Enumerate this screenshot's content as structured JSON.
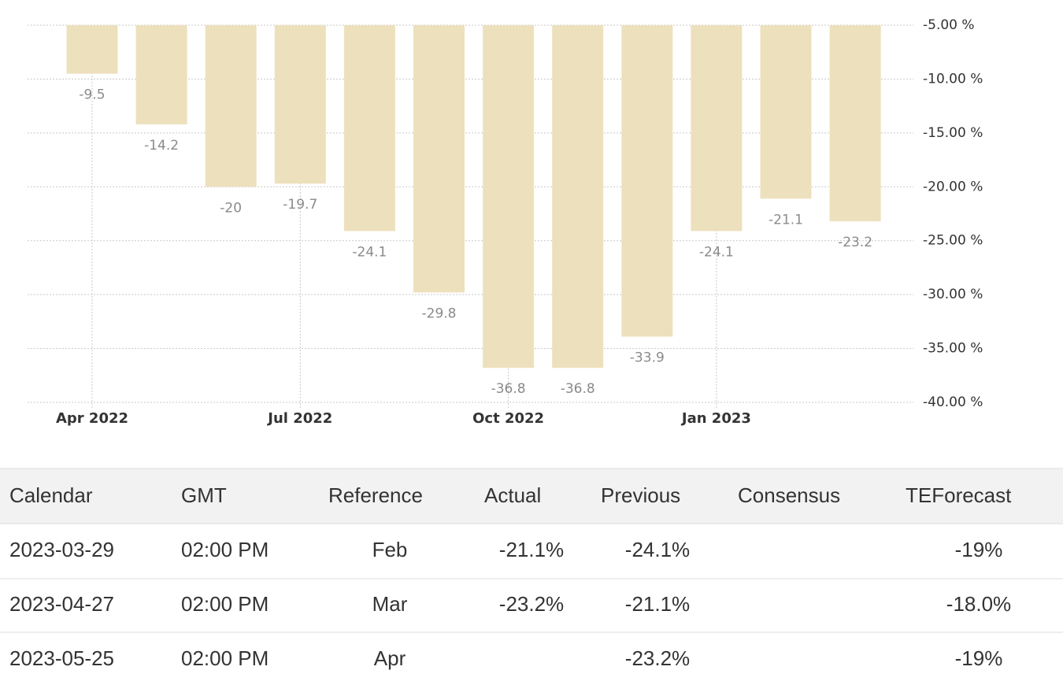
{
  "chart_data": {
    "type": "bar",
    "categories": [
      "Apr 2022",
      null,
      null,
      "Jul 2022",
      null,
      null,
      "Oct 2022",
      null,
      null,
      "Jan 2023",
      null,
      null
    ],
    "values": [
      -9.5,
      -14.2,
      -20,
      -19.7,
      -24.1,
      -29.8,
      -36.8,
      -36.8,
      -33.9,
      -24.1,
      -21.1,
      -23.2
    ],
    "color": "#ede0bc",
    "ylim": [
      -40,
      -5
    ],
    "yticks": [
      {
        "value": -5,
        "label": "-5.00 %"
      },
      {
        "value": -10,
        "label": "-10.00 %"
      },
      {
        "value": -15,
        "label": "-15.00 %"
      },
      {
        "value": -20,
        "label": "-20.00 %"
      },
      {
        "value": -25,
        "label": "-25.00 %"
      },
      {
        "value": -30,
        "label": "-30.00 %"
      },
      {
        "value": -35,
        "label": "-35.00 %"
      },
      {
        "value": -40,
        "label": "-40.00 %"
      }
    ],
    "grid": true
  },
  "table": {
    "columns": [
      "Calendar",
      "GMT",
      "Reference",
      "Actual",
      "Previous",
      "Consensus",
      "TEForecast"
    ],
    "rows": [
      [
        "2023-03-29",
        "02:00 PM",
        "Feb",
        "-21.1%",
        "-24.1%",
        null,
        "-19%"
      ],
      [
        "2023-04-27",
        "02:00 PM",
        "Mar",
        "-23.2%",
        "-21.1%",
        null,
        "-18.0%"
      ],
      [
        "2023-05-25",
        "02:00 PM",
        "Apr",
        null,
        "-23.2%",
        null,
        "-19%"
      ]
    ]
  }
}
